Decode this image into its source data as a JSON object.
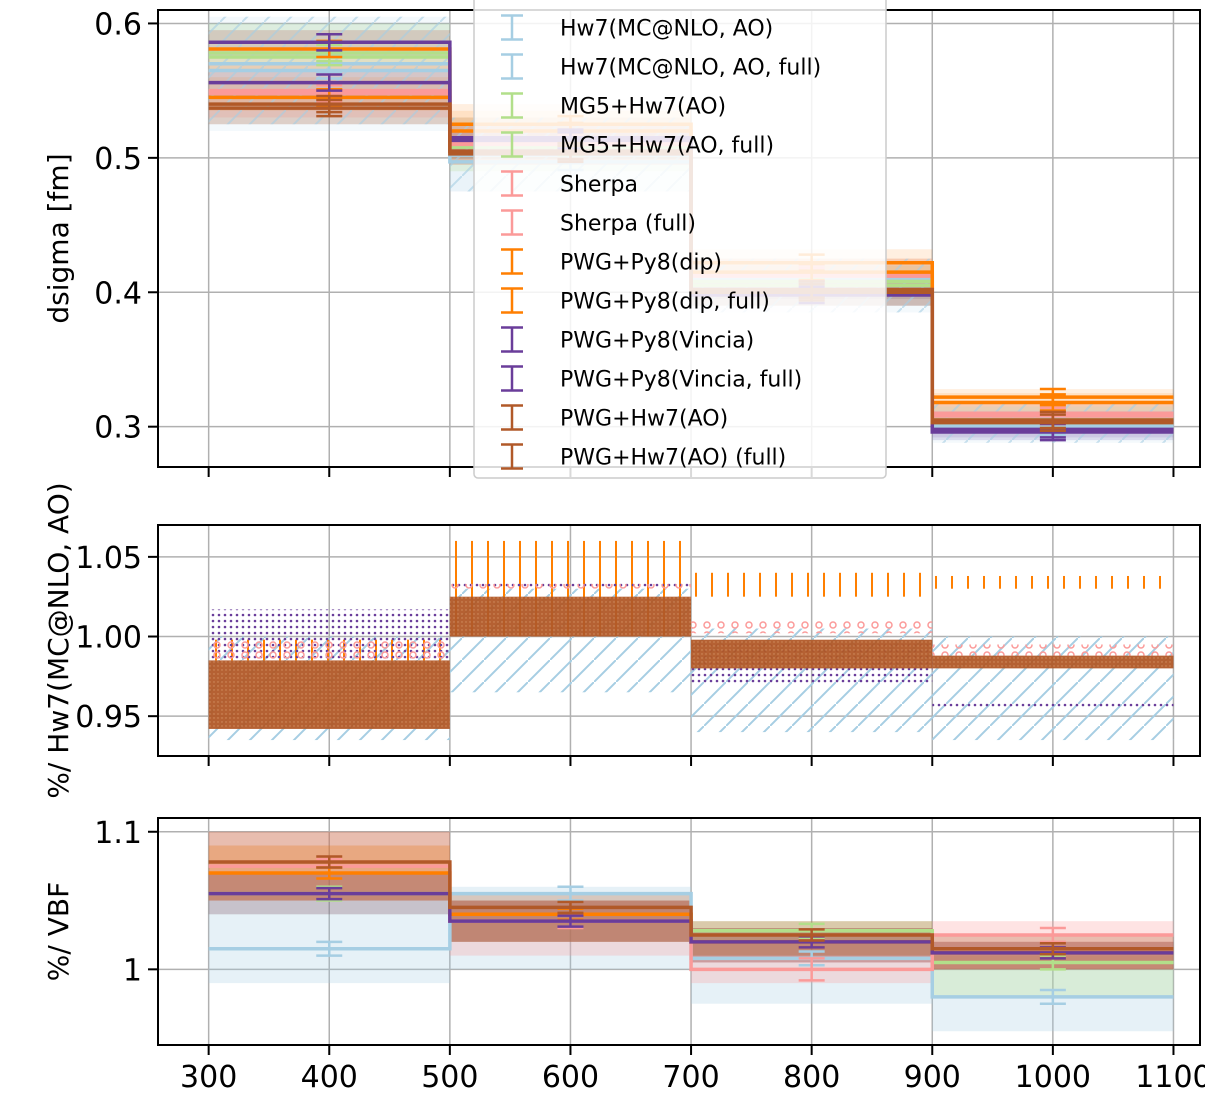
{
  "chart_data": [
    {
      "panel": "main",
      "type": "line",
      "step": true,
      "bin_edges": [
        300,
        500,
        700,
        900,
        1100
      ],
      "x_ticks": [
        300,
        400,
        500,
        600,
        700,
        800,
        900,
        1000,
        1100
      ],
      "ylabel": "dsigma [fm]",
      "ylim": [
        0.27,
        0.61
      ],
      "y_ticks": [
        0.3,
        0.4,
        0.5,
        0.6
      ],
      "grid": true,
      "legend_position": "top-center",
      "series": [
        {
          "name": "Hw7(MC@NLO, AO)",
          "color": "#a6cee3",
          "values": [
            0.565,
            0.502,
            0.41,
            0.302
          ],
          "band": [
            0.525,
            0.605,
            0.475,
            0.53,
            0.385,
            0.425,
            0.288,
            0.318
          ]
        },
        {
          "name": "Hw7(MC@NLO, AO, full)",
          "color": "#a6cee3",
          "values": [
            0.57,
            0.497,
            0.408,
            0.3
          ],
          "band": [
            0.52,
            0.6,
            0.475,
            0.525,
            0.39,
            0.42,
            0.29,
            0.315
          ]
        },
        {
          "name": "MG5+Hw7(AO)",
          "color": "#b2df8a",
          "values": [
            0.575,
            0.51,
            0.405,
            0.305
          ],
          "band": [
            0.55,
            0.6,
            0.49,
            0.53,
            0.39,
            0.42,
            0.295,
            0.315
          ]
        },
        {
          "name": "MG5+Hw7(AO, full)",
          "color": "#b2df8a",
          "values": [
            0.578,
            0.508,
            0.408,
            0.303
          ],
          "band": [
            0.55,
            0.6,
            0.49,
            0.53,
            0.395,
            0.42,
            0.295,
            0.315
          ]
        },
        {
          "name": "Sherpa",
          "color": "#fb9a99",
          "values": [
            0.548,
            0.512,
            0.414,
            0.31
          ],
          "band": [
            0.53,
            0.57,
            0.495,
            0.53,
            0.4,
            0.425,
            0.3,
            0.318
          ]
        },
        {
          "name": "Sherpa  (full)",
          "color": "#fb9a99",
          "values": [
            0.55,
            0.51,
            0.412,
            0.308
          ],
          "band": [
            0.53,
            0.57,
            0.495,
            0.53,
            0.4,
            0.425,
            0.3,
            0.318
          ]
        },
        {
          "name": "PWG+Py8(dip)",
          "color": "#ff7f00",
          "values": [
            0.581,
            0.525,
            0.422,
            0.322
          ],
          "band": [
            0.565,
            0.595,
            0.51,
            0.54,
            0.412,
            0.432,
            0.315,
            0.328
          ]
        },
        {
          "name": "PWG+Py8(dip, full)",
          "color": "#ff7f00",
          "values": [
            0.545,
            0.52,
            0.415,
            0.318
          ],
          "band": [
            0.535,
            0.56,
            0.51,
            0.535,
            0.405,
            0.425,
            0.312,
            0.325
          ]
        },
        {
          "name": "PWG+Py8(Vincia)",
          "color": "#6a3d9a",
          "values": [
            0.586,
            0.515,
            0.402,
            0.296
          ],
          "band": [
            0.575,
            0.595,
            0.505,
            0.525,
            0.395,
            0.41,
            0.29,
            0.302
          ]
        },
        {
          "name": "PWG+Py8(Vincia, full)",
          "color": "#6a3d9a",
          "values": [
            0.556,
            0.513,
            0.398,
            0.298
          ],
          "band": [
            0.545,
            0.565,
            0.505,
            0.52,
            0.39,
            0.405,
            0.292,
            0.304
          ]
        },
        {
          "name": "PWG+Hw7(AO)",
          "color": "#b15928",
          "values": [
            0.537,
            0.505,
            0.4,
            0.305
          ],
          "band": [
            0.525,
            0.55,
            0.495,
            0.515,
            0.39,
            0.41,
            0.3,
            0.312
          ]
        },
        {
          "name": "PWG+Hw7(AO) (full)",
          "color": "#b15928",
          "values": [
            0.54,
            0.503,
            0.402,
            0.303
          ],
          "band": [
            0.525,
            0.55,
            0.495,
            0.515,
            0.39,
            0.41,
            0.298,
            0.31
          ]
        }
      ]
    },
    {
      "panel": "ratio",
      "type": "area",
      "step": true,
      "bin_edges": [
        300,
        500,
        700,
        900,
        1100
      ],
      "ylabel": "%/ Hw7(MC@NLO, AO)",
      "ylim": [
        0.925,
        1.07
      ],
      "y_ticks": [
        0.95,
        1.0,
        1.05
      ],
      "y_tick_labels": [
        "0.95",
        "1.00",
        "1.05"
      ],
      "grid": true,
      "series": [
        {
          "name": "Hw7(MC@NLO, AO)",
          "color": "#a6cee3",
          "pattern": "hatch",
          "low": [
            0.935,
            0.965,
            0.94,
            0.935
          ],
          "high": [
            1.0,
            1.03,
            1.005,
            1.0
          ]
        },
        {
          "name": "PWG+Py8(dip)",
          "color": "#ff7f00",
          "pattern": "vline",
          "low": [
            0.985,
            1.0,
            1.025,
            1.03
          ],
          "high": [
            0.998,
            1.06,
            1.04,
            1.038
          ]
        },
        {
          "name": "PWG+Py8(Vincia)",
          "color": "#6a3d9a",
          "pattern": "dots",
          "low": [
            0.985,
            1.03,
            0.97,
            0.955
          ],
          "high": [
            1.017,
            1.035,
            0.995,
            0.958
          ]
        },
        {
          "name": "Sherpa",
          "color": "#fb9a99",
          "pattern": "circles",
          "low": [
            0.985,
            1.03,
            1.002,
            0.988
          ],
          "high": [
            0.998,
            1.033,
            1.01,
            0.995
          ]
        },
        {
          "name": "PWG+Hw7(AO)",
          "color": "#b15928",
          "pattern": "solid",
          "low": [
            0.942,
            1.0,
            0.98,
            0.98
          ],
          "high": [
            0.985,
            1.025,
            0.998,
            0.988
          ]
        }
      ]
    },
    {
      "panel": "vbf",
      "type": "line",
      "step": true,
      "bin_edges": [
        300,
        500,
        700,
        900,
        1100
      ],
      "ylabel": "%/ VBF",
      "ylim": [
        0.945,
        1.11
      ],
      "y_ticks": [
        1.0,
        1.1
      ],
      "grid": true,
      "series": [
        {
          "name": "Hw7(MC@NLO, AO)",
          "color": "#a6cee3",
          "values": [
            1.015,
            1.055,
            1.008,
            0.98
          ],
          "band": [
            0.99,
            1.04,
            1.0,
            1.06,
            0.975,
            1.03,
            0.955,
            1.0
          ],
          "err": [
            0.005,
            0.005,
            0.005,
            0.005
          ]
        },
        {
          "name": "MG5+Hw7(AO)",
          "color": "#b2df8a",
          "values": [
            1.055,
            1.04,
            1.028,
            1.005
          ],
          "band": [
            1.04,
            1.07,
            1.02,
            1.05,
            1.01,
            1.035,
            0.98,
            1.01
          ],
          "err": [
            0.005,
            0.005,
            0.005,
            0.005
          ]
        },
        {
          "name": "Sherpa",
          "color": "#fb9a99",
          "values": [
            1.075,
            1.035,
            1.0,
            1.025
          ],
          "band": [
            1.05,
            1.1,
            1.01,
            1.05,
            0.99,
            1.02,
            1.0,
            1.035
          ],
          "err": [
            0.005,
            0.005,
            0.008,
            0.005
          ]
        },
        {
          "name": "PWG+Py8(dip)",
          "color": "#ff7f00",
          "values": [
            1.07,
            1.04,
            1.02,
            1.012
          ],
          "band": [
            1.05,
            1.09,
            1.02,
            1.05,
            1.005,
            1.03,
            1.0,
            1.02
          ],
          "err": [
            0.004,
            0.004,
            0.004,
            0.004
          ]
        },
        {
          "name": "PWG+Py8(Vincia)",
          "color": "#6a3d9a",
          "values": [
            1.055,
            1.035,
            1.02,
            1.012
          ],
          "band": [
            1.04,
            1.07,
            1.02,
            1.05,
            1.005,
            1.03,
            1.0,
            1.02
          ],
          "err": [
            0.004,
            0.004,
            0.004,
            0.004
          ]
        },
        {
          "name": "PWG+Hw7(AO)",
          "color": "#b15928",
          "values": [
            1.078,
            1.045,
            1.025,
            1.015
          ],
          "band": [
            1.05,
            1.1,
            1.02,
            1.055,
            1.01,
            1.035,
            1.0,
            1.025
          ],
          "err": [
            0.004,
            0.004,
            0.004,
            0.004
          ]
        }
      ]
    }
  ],
  "legend": {
    "entries": [
      {
        "label": "Hw7(MC@NLO, AO)",
        "color": "#a6cee3"
      },
      {
        "label": "Hw7(MC@NLO, AO, full)",
        "color": "#a6cee3"
      },
      {
        "label": "MG5+Hw7(AO)",
        "color": "#b2df8a"
      },
      {
        "label": "MG5+Hw7(AO, full)",
        "color": "#b2df8a"
      },
      {
        "label": "Sherpa",
        "color": "#fb9a99"
      },
      {
        "label": "Sherpa  (full)",
        "color": "#fb9a99"
      },
      {
        "label": "PWG+Py8(dip)",
        "color": "#ff7f00"
      },
      {
        "label": "PWG+Py8(dip, full)",
        "color": "#ff7f00"
      },
      {
        "label": "PWG+Py8(Vincia)",
        "color": "#6a3d9a"
      },
      {
        "label": "PWG+Py8(Vincia, full)",
        "color": "#6a3d9a"
      },
      {
        "label": "PWG+Hw7(AO)",
        "color": "#b15928"
      },
      {
        "label": "PWG+Hw7(AO) (full)",
        "color": "#b15928"
      }
    ]
  }
}
